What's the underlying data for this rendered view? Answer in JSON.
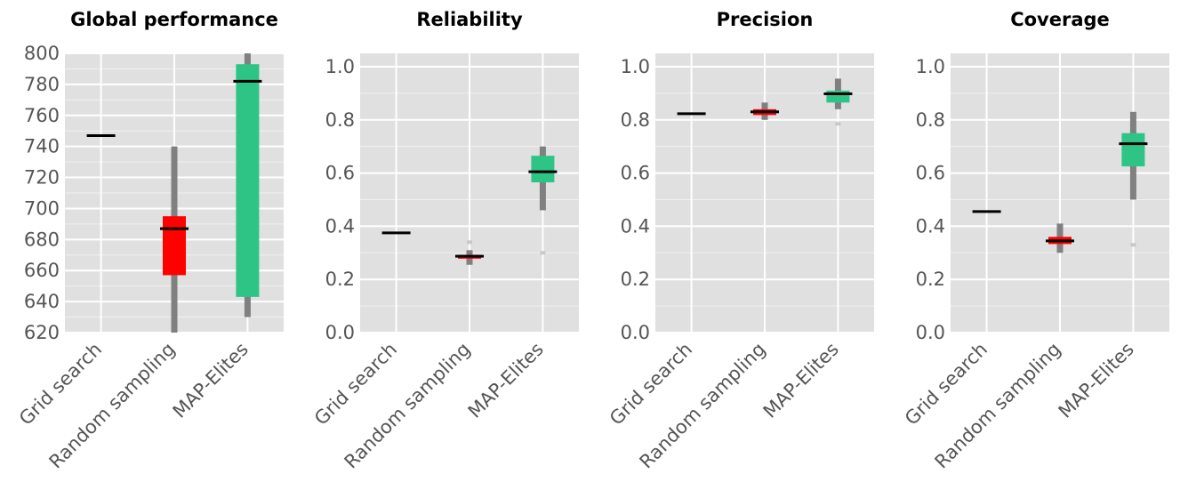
{
  "colors": {
    "panel_bg": "#e0e0e0",
    "grid": "#ffffff",
    "whisker": "#808080",
    "median": "#000000",
    "method_colors": [
      "#7f7f7f",
      "#ff0000",
      "#2ec486"
    ]
  },
  "chart_data": [
    {
      "type": "box",
      "title": "Global performance",
      "categories": [
        "Grid search",
        "Random sampling",
        "MAP-Elites"
      ],
      "ylim": [
        620,
        800
      ],
      "yticks": [
        620,
        640,
        660,
        680,
        700,
        720,
        740,
        760,
        780,
        800
      ],
      "ytick_labels": [
        "620",
        "640",
        "660",
        "680",
        "700",
        "720",
        "740",
        "760",
        "780",
        "800"
      ],
      "grid": true,
      "boxes": [
        {
          "name": "Grid search",
          "whisker_low": 746.5,
          "q1": 746.5,
          "median": 747,
          "q3": 747.5,
          "whisker_high": 747.5,
          "outliers": []
        },
        {
          "name": "Random sampling",
          "whisker_low": 618,
          "q1": 657,
          "median": 687,
          "q3": 695,
          "whisker_high": 740,
          "outliers": []
        },
        {
          "name": "MAP-Elites",
          "whisker_low": 630,
          "q1": 643,
          "median": 782,
          "q3": 793,
          "whisker_high": 802,
          "outliers": []
        }
      ]
    },
    {
      "type": "box",
      "title": "Reliability",
      "categories": [
        "Grid search",
        "Random sampling",
        "MAP-Elites"
      ],
      "ylim": [
        0.0,
        1.05
      ],
      "yticks": [
        0.0,
        0.2,
        0.4,
        0.6,
        0.8,
        1.0
      ],
      "ytick_labels": [
        "0.0",
        "0.2",
        "0.4",
        "0.6",
        "0.8",
        "1.0"
      ],
      "grid": true,
      "boxes": [
        {
          "name": "Grid search",
          "whisker_low": 0.372,
          "q1": 0.372,
          "median": 0.375,
          "q3": 0.378,
          "whisker_high": 0.378,
          "outliers": []
        },
        {
          "name": "Random sampling",
          "whisker_low": 0.255,
          "q1": 0.278,
          "median": 0.287,
          "q3": 0.292,
          "whisker_high": 0.31,
          "outliers": [
            0.34
          ]
        },
        {
          "name": "MAP-Elites",
          "whisker_low": 0.46,
          "q1": 0.565,
          "median": 0.605,
          "q3": 0.665,
          "whisker_high": 0.7,
          "outliers": [
            0.3
          ]
        }
      ]
    },
    {
      "type": "box",
      "title": "Precision",
      "categories": [
        "Grid search",
        "Random sampling",
        "MAP-Elites"
      ],
      "ylim": [
        0.0,
        1.05
      ],
      "yticks": [
        0.0,
        0.2,
        0.4,
        0.6,
        0.8,
        1.0
      ],
      "ytick_labels": [
        "0.0",
        "0.2",
        "0.4",
        "0.6",
        "0.8",
        "1.0"
      ],
      "grid": true,
      "boxes": [
        {
          "name": "Grid search",
          "whisker_low": 0.82,
          "q1": 0.82,
          "median": 0.823,
          "q3": 0.826,
          "whisker_high": 0.826,
          "outliers": []
        },
        {
          "name": "Random sampling",
          "whisker_low": 0.8,
          "q1": 0.818,
          "median": 0.83,
          "q3": 0.84,
          "whisker_high": 0.865,
          "outliers": []
        },
        {
          "name": "MAP-Elites",
          "whisker_low": 0.84,
          "q1": 0.865,
          "median": 0.898,
          "q3": 0.91,
          "whisker_high": 0.955,
          "outliers": [
            0.785
          ]
        }
      ]
    },
    {
      "type": "box",
      "title": "Coverage",
      "categories": [
        "Grid search",
        "Random sampling",
        "MAP-Elites"
      ],
      "ylim": [
        0.0,
        1.05
      ],
      "yticks": [
        0.0,
        0.2,
        0.4,
        0.6,
        0.8,
        1.0
      ],
      "ytick_labels": [
        "0.0",
        "0.2",
        "0.4",
        "0.6",
        "0.8",
        "1.0"
      ],
      "grid": true,
      "boxes": [
        {
          "name": "Grid search",
          "whisker_low": 0.452,
          "q1": 0.452,
          "median": 0.455,
          "q3": 0.458,
          "whisker_high": 0.458,
          "outliers": []
        },
        {
          "name": "Random sampling",
          "whisker_low": 0.3,
          "q1": 0.333,
          "median": 0.345,
          "q3": 0.36,
          "whisker_high": 0.41,
          "outliers": []
        },
        {
          "name": "MAP-Elites",
          "whisker_low": 0.5,
          "q1": 0.625,
          "median": 0.71,
          "q3": 0.75,
          "whisker_high": 0.83,
          "outliers": [
            0.33
          ]
        }
      ]
    }
  ]
}
